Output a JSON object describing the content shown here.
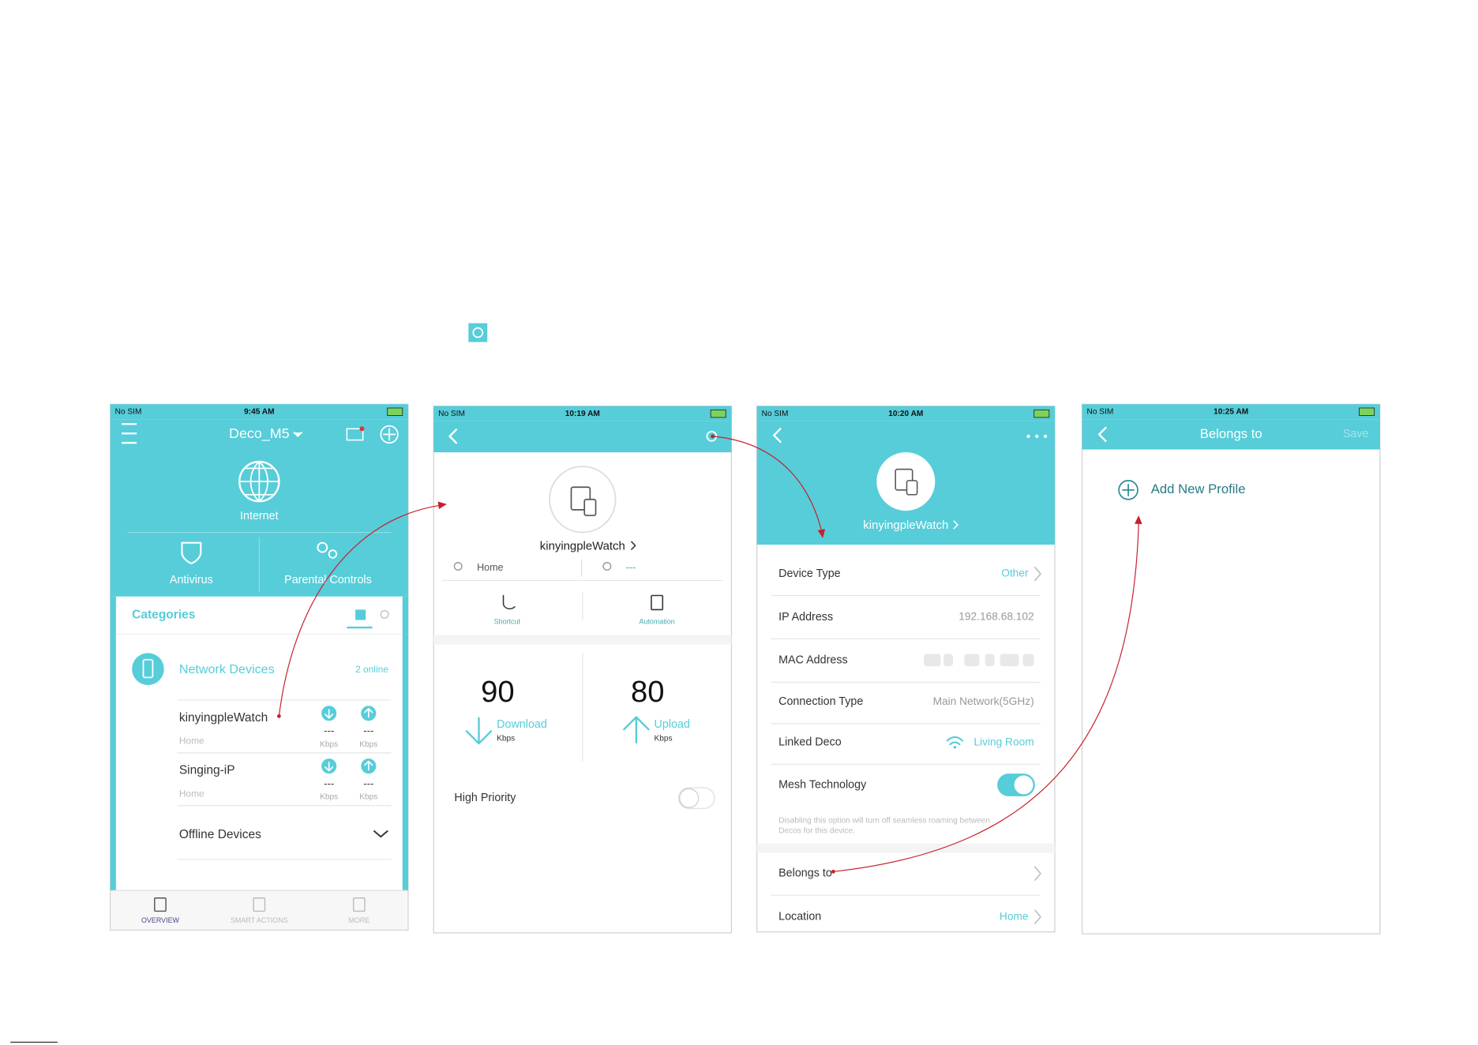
{
  "status_bars": [
    {
      "carrier": "No SIM",
      "time": "9:45 AM"
    },
    {
      "carrier": "No SIM",
      "time": "10:19 AM"
    },
    {
      "carrier": "No SIM",
      "time": "10:20 AM"
    },
    {
      "carrier": "No SIM",
      "time": "10:25 AM"
    }
  ],
  "screen1": {
    "title": "Deco_M5",
    "internet": "Internet",
    "antivirus": "Antivirus",
    "parental_controls": "Parental Controls",
    "categories": "Categories",
    "group": {
      "name": "Network Devices",
      "online": "2 online"
    },
    "devices": [
      {
        "name": "kinyingpleWatch",
        "location": "Home",
        "download": "---",
        "download_unit": "Kbps",
        "upload": "---",
        "upload_unit": "Kbps"
      },
      {
        "name": "Singing-iP",
        "location": "Home",
        "download": "---",
        "download_unit": "Kbps",
        "upload": "---",
        "upload_unit": "Kbps"
      }
    ],
    "offline": "Offline Devices",
    "tabs": [
      "OVERVIEW",
      "SMART ACTIONS",
      "MORE"
    ]
  },
  "screen2": {
    "device_name": "kinyingpleWatch",
    "location": "Home",
    "owner": "---",
    "shortcut": "Shortcut",
    "automation": "Automation",
    "download": {
      "value": 90,
      "label": "Download",
      "unit": "Kbps"
    },
    "upload": {
      "value": 80,
      "label": "Upload",
      "unit": "Kbps"
    },
    "high_priority": "High Priority"
  },
  "screen3": {
    "device_name": "kinyingpleWatch",
    "rows": [
      {
        "label": "Device Type",
        "value": "Other"
      },
      {
        "label": "IP Address",
        "value": "192.168.68.102"
      },
      {
        "label": "MAC Address"
      },
      {
        "label": "Connection Type",
        "value": "Main Network(5GHz)"
      },
      {
        "label": "Linked Deco",
        "value": "Living Room"
      },
      {
        "label": "Mesh Technology"
      },
      {
        "label": "Belongs to"
      },
      {
        "label": "Location",
        "value": "Home"
      }
    ],
    "mesh_note": [
      "Disabling this option will turn off seamless roaming between",
      "Decos for this device."
    ]
  },
  "screen4": {
    "title": "Belongs to",
    "save": "Save",
    "add_profile": "Add New Profile"
  }
}
